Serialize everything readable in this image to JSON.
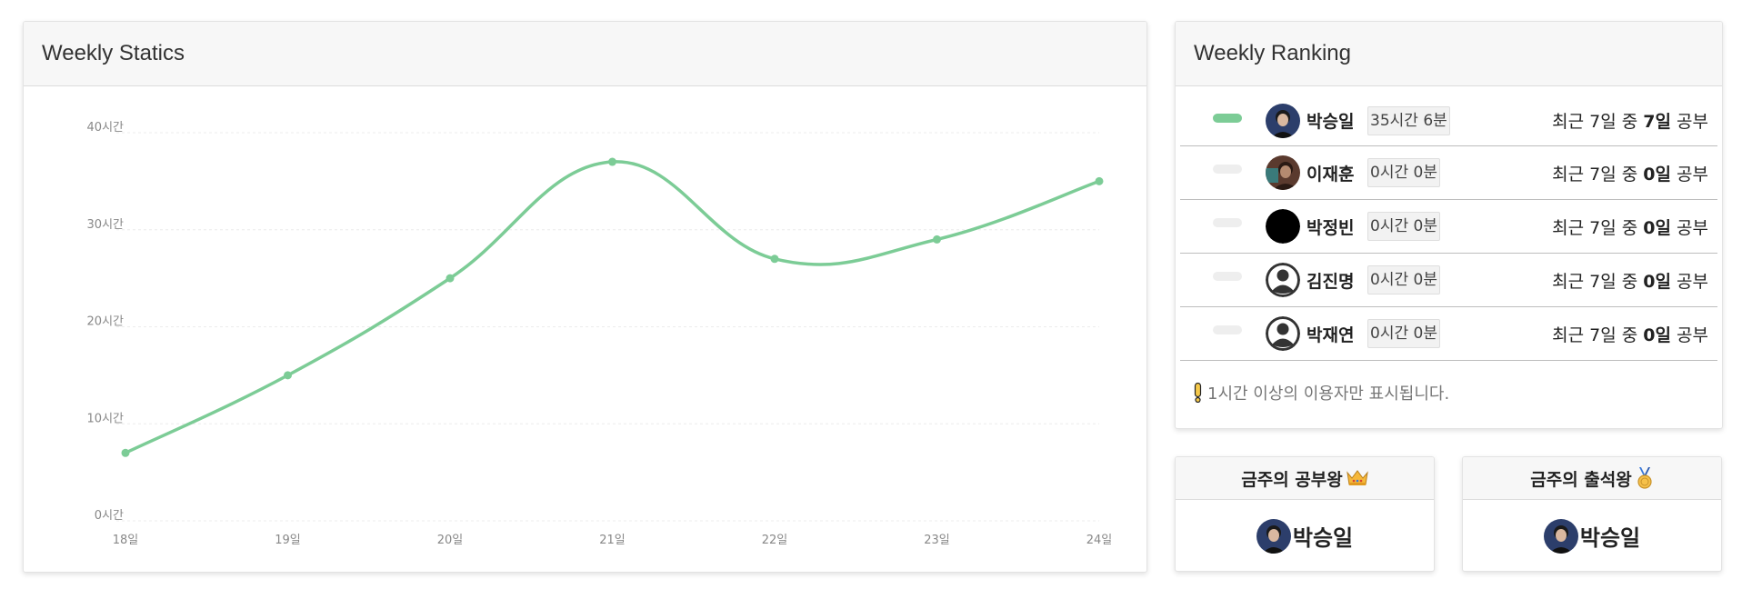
{
  "stats": {
    "title": "Weekly Statics"
  },
  "chart_data": {
    "type": "line",
    "categories": [
      "18일",
      "19일",
      "20일",
      "21일",
      "22일",
      "23일",
      "24일"
    ],
    "values": [
      7,
      15,
      25,
      37,
      27,
      29,
      35
    ],
    "ylim": [
      0,
      40
    ],
    "yticks": [
      0,
      10,
      20,
      30,
      40
    ],
    "ytick_labels": [
      "0시간",
      "10시간",
      "20시간",
      "30시간",
      "40시간"
    ],
    "color": "#7ccc96",
    "grid": true
  },
  "ranking": {
    "title": "Weekly Ranking",
    "bar_active_color": "#7ccc96",
    "bar_inactive_color": "#eeeeee",
    "rows": [
      {
        "name": "박승일",
        "time": "35시간 6분",
        "desc_prefix": "최근 7일 중 ",
        "days": "7일",
        "desc_suffix": " 공부",
        "bar_fraction": 1.0,
        "avatar": "photo-avatar"
      },
      {
        "name": "이재훈",
        "time": "0시간 0분",
        "desc_prefix": "최근 7일 중 ",
        "days": "0일",
        "desc_suffix": " 공부",
        "bar_fraction": 0.0,
        "avatar": "photo-avatar"
      },
      {
        "name": "박정빈",
        "time": "0시간 0분",
        "desc_prefix": "최근 7일 중 ",
        "days": "0일",
        "desc_suffix": " 공부",
        "bar_fraction": 0.0,
        "avatar": "black-avatar"
      },
      {
        "name": "김진명",
        "time": "0시간 0분",
        "desc_prefix": "최근 7일 중 ",
        "days": "0일",
        "desc_suffix": " 공부",
        "bar_fraction": 0.0,
        "avatar": "default-user-icon"
      },
      {
        "name": "박재연",
        "time": "0시간 0분",
        "desc_prefix": "최근 7일 중 ",
        "days": "0일",
        "desc_suffix": " 공부",
        "bar_fraction": 0.0,
        "avatar": "default-user-icon"
      }
    ],
    "notice": "1시간 이상의 이용자만 표시됩니다."
  },
  "study_king": {
    "title": "금주의 공부왕",
    "icon": "crown-icon",
    "name": "박승일"
  },
  "attendance_king": {
    "title": "금주의 출석왕",
    "icon": "medal-icon",
    "name": "박승일"
  }
}
